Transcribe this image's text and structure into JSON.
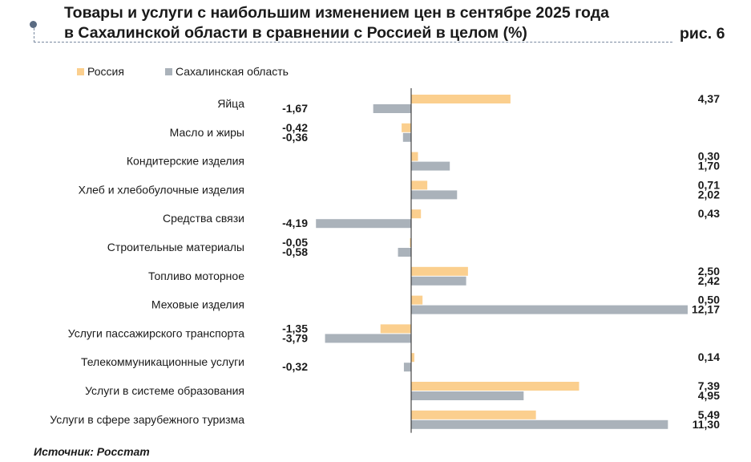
{
  "title_line1": "Товары и услуги с наибольшим изменением цен в сентябре 2025 года",
  "title_line2": "в Сахалинской области в сравнении с Россией в целом (%)",
  "figure_label": "рис. 6",
  "source": "Источник: Росстат",
  "colors": {
    "russia": "#FBCF8E",
    "sakhalin": "#AAB2BA"
  },
  "chart_data": {
    "type": "bar",
    "orientation": "horizontal",
    "title": "Товары и услуги с наибольшим изменением цен в сентябре 2025 года в Сахалинской области в сравнении с Россией в целом (%)",
    "categories": [
      "Яйца",
      "Масло и жиры",
      "Кондитерские изделия",
      "Хлеб и хлебобулочные изделия",
      "Средства связи",
      "Строительные материалы",
      "Топливо моторное",
      "Меховые изделия",
      "Услуги пассажирского транспорта",
      "Телекоммуникационные услуги",
      "Услуги в системе образования",
      "Услуги в сфере зарубежного туризма"
    ],
    "series": [
      {
        "name": "Россия",
        "values": [
          4.37,
          -0.42,
          0.3,
          0.71,
          0.43,
          -0.05,
          2.5,
          0.5,
          -1.35,
          0.14,
          7.39,
          5.49
        ],
        "labels": [
          "4,37",
          "-0,42",
          "0,30",
          "0,71",
          "0,43",
          "-0,05",
          "2,50",
          "0,50",
          "-1,35",
          "0,14",
          "7,39",
          "5,49"
        ]
      },
      {
        "name": "Сахалинская область",
        "values": [
          -1.67,
          -0.36,
          1.7,
          2.02,
          -4.19,
          -0.58,
          2.42,
          12.17,
          -3.79,
          -0.32,
          4.95,
          11.3
        ],
        "labels": [
          "-1,67",
          "-0,36",
          "1,70",
          "2,02",
          "-4,19",
          "-0,58",
          "2,42",
          "12,17",
          "-3,79",
          "-0,32",
          "4,95",
          "11,30"
        ]
      }
    ],
    "legend": [
      "Россия",
      "Сахалинская область"
    ],
    "legend_position": "top-left",
    "grid": false
  }
}
